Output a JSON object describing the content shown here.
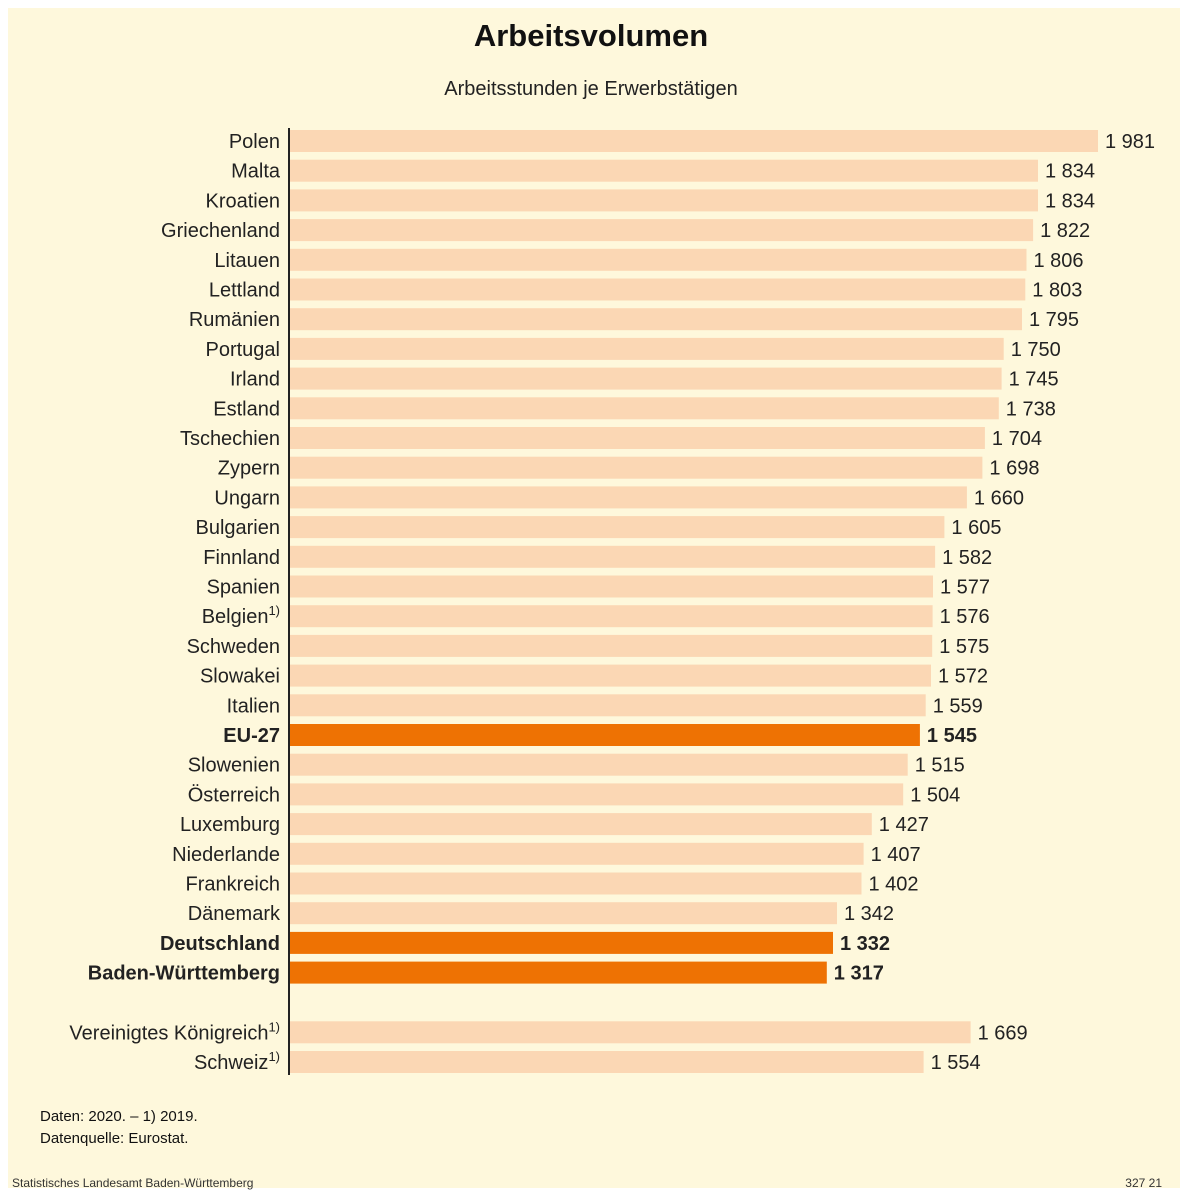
{
  "chart_data": {
    "type": "bar",
    "orientation": "horizontal",
    "title": "Arbeitsvolumen",
    "subtitle": "Arbeitsstunden je Erwerbstätigen",
    "xlim": [
      0,
      1981
    ],
    "grid": false,
    "colors": {
      "default": "#fbd7b4",
      "highlight": "#ee7203",
      "axis": "#222222",
      "background": "#fef8dc"
    },
    "bars": [
      {
        "category": "Polen",
        "value": 1981,
        "value_label": "1 981"
      },
      {
        "category": "Malta",
        "value": 1834,
        "value_label": "1 834"
      },
      {
        "category": "Kroatien",
        "value": 1834,
        "value_label": "1 834"
      },
      {
        "category": "Griechenland",
        "value": 1822,
        "value_label": "1 822"
      },
      {
        "category": "Litauen",
        "value": 1806,
        "value_label": "1 806"
      },
      {
        "category": "Lettland",
        "value": 1803,
        "value_label": "1 803"
      },
      {
        "category": "Rumänien",
        "value": 1795,
        "value_label": "1 795"
      },
      {
        "category": "Portugal",
        "value": 1750,
        "value_label": "1 750"
      },
      {
        "category": "Irland",
        "value": 1745,
        "value_label": "1 745"
      },
      {
        "category": "Estland",
        "value": 1738,
        "value_label": "1 738"
      },
      {
        "category": "Tschechien",
        "value": 1704,
        "value_label": "1 704"
      },
      {
        "category": "Zypern",
        "value": 1698,
        "value_label": "1 698"
      },
      {
        "category": "Ungarn",
        "value": 1660,
        "value_label": "1 660"
      },
      {
        "category": "Bulgarien",
        "value": 1605,
        "value_label": "1 605"
      },
      {
        "category": "Finnland",
        "value": 1582,
        "value_label": "1 582"
      },
      {
        "category": "Spanien",
        "value": 1577,
        "value_label": "1 577"
      },
      {
        "category": "Belgien",
        "footnote": "1)",
        "value": 1576,
        "value_label": "1 576"
      },
      {
        "category": "Schweden",
        "value": 1575,
        "value_label": "1 575"
      },
      {
        "category": "Slowakei",
        "value": 1572,
        "value_label": "1 572"
      },
      {
        "category": "Italien",
        "value": 1559,
        "value_label": "1 559"
      },
      {
        "category": "EU-27",
        "value": 1545,
        "value_label": "1 545",
        "highlight": true
      },
      {
        "category": "Slowenien",
        "value": 1515,
        "value_label": "1 515"
      },
      {
        "category": "Österreich",
        "value": 1504,
        "value_label": "1 504"
      },
      {
        "category": "Luxemburg",
        "value": 1427,
        "value_label": "1 427"
      },
      {
        "category": "Niederlande",
        "value": 1407,
        "value_label": "1 407"
      },
      {
        "category": "Frankreich",
        "value": 1402,
        "value_label": "1 402"
      },
      {
        "category": "Dänemark",
        "value": 1342,
        "value_label": "1 342"
      },
      {
        "category": "Deutschland",
        "value": 1332,
        "value_label": "1 332",
        "highlight": true
      },
      {
        "category": "Baden-Württemberg",
        "value": 1317,
        "value_label": "1 317",
        "highlight": true
      },
      {
        "category": "Vereinigtes Königreich",
        "footnote": "1)",
        "value": 1669,
        "value_label": "1 669",
        "group": 2
      },
      {
        "category": "Schweiz",
        "footnote": "1)",
        "value": 1554,
        "value_label": "1 554",
        "group": 2
      }
    ]
  },
  "notes": {
    "line1": "Daten: 2020. – 1) 2019.",
    "line2": "Datenquelle: Eurostat."
  },
  "footer": {
    "source": "Statistisches Landesamt Baden-Württemberg",
    "code": "327 21"
  }
}
